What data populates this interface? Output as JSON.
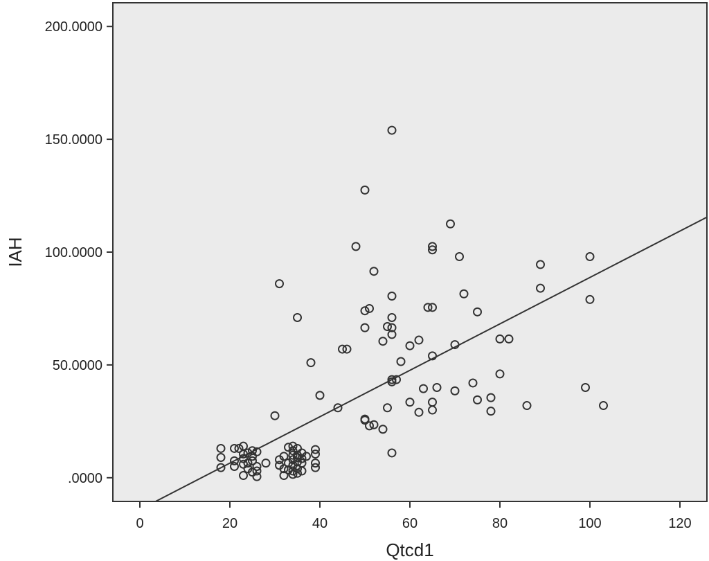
{
  "chart_data": {
    "type": "scatter",
    "title": "",
    "xlabel": "Qtcd1",
    "ylabel": "IAH",
    "xlim": [
      -6,
      126
    ],
    "ylim": [
      -10.5,
      210.5
    ],
    "x_ticks": [
      0,
      20,
      40,
      60,
      80,
      100,
      120
    ],
    "x_tick_labels": [
      "0",
      "20",
      "40",
      "60",
      "80",
      "100",
      "120"
    ],
    "y_ticks": [
      0,
      50,
      100,
      150,
      200
    ],
    "y_tick_labels": [
      ".0000",
      "50.0000",
      "100.0000",
      "150.0000",
      "200.0000"
    ],
    "grid": false,
    "background_color": "#ebebeb",
    "marker_color": "#333333",
    "fit_line": {
      "type": "linear",
      "x": [
        3.5,
        126
      ],
      "y": [
        -11,
        115.5
      ],
      "color": "#333333"
    },
    "points": [
      [
        18,
        13
      ],
      [
        18,
        9
      ],
      [
        18,
        4.5
      ],
      [
        21,
        13
      ],
      [
        21,
        7.5
      ],
      [
        21,
        5
      ],
      [
        22,
        13
      ],
      [
        23,
        14
      ],
      [
        23,
        10.5
      ],
      [
        23,
        8.5
      ],
      [
        23,
        6
      ],
      [
        23,
        1
      ],
      [
        24,
        11
      ],
      [
        24,
        6.5
      ],
      [
        24,
        4
      ],
      [
        25,
        12
      ],
      [
        25,
        9.5
      ],
      [
        25,
        7.5
      ],
      [
        25,
        2.5
      ],
      [
        26,
        11.5
      ],
      [
        26,
        5
      ],
      [
        26,
        3
      ],
      [
        26,
        0.5
      ],
      [
        28,
        6.5
      ],
      [
        30,
        27.5
      ],
      [
        31,
        86
      ],
      [
        31,
        8
      ],
      [
        31,
        5.5
      ],
      [
        32,
        9.5
      ],
      [
        32,
        4
      ],
      [
        32,
        1
      ],
      [
        33,
        13.5
      ],
      [
        33,
        6.5
      ],
      [
        33,
        3.5
      ],
      [
        34,
        14
      ],
      [
        34,
        12
      ],
      [
        34,
        10
      ],
      [
        34,
        8
      ],
      [
        34,
        5.5
      ],
      [
        34,
        3
      ],
      [
        34,
        1.5
      ],
      [
        35,
        71
      ],
      [
        35,
        13
      ],
      [
        35,
        10
      ],
      [
        35,
        9
      ],
      [
        35,
        7
      ],
      [
        35,
        4
      ],
      [
        35,
        2
      ],
      [
        36,
        11
      ],
      [
        36,
        8.5
      ],
      [
        36,
        6.5
      ],
      [
        36,
        3
      ],
      [
        37,
        9.5
      ],
      [
        38,
        51
      ],
      [
        39,
        12.5
      ],
      [
        39,
        10.5
      ],
      [
        39,
        6.5
      ],
      [
        39,
        4.5
      ],
      [
        40,
        36.5
      ],
      [
        44,
        31
      ],
      [
        45,
        57
      ],
      [
        46,
        57
      ],
      [
        48,
        102.5
      ],
      [
        50,
        127.5
      ],
      [
        50,
        74
      ],
      [
        50,
        66.5
      ],
      [
        50,
        26
      ],
      [
        50,
        25.5
      ],
      [
        51,
        75
      ],
      [
        51,
        23
      ],
      [
        52,
        91.5
      ],
      [
        52,
        23.5
      ],
      [
        54,
        60.5
      ],
      [
        54,
        21.5
      ],
      [
        55,
        67
      ],
      [
        55,
        31
      ],
      [
        56,
        154
      ],
      [
        56,
        80.5
      ],
      [
        56,
        71
      ],
      [
        56,
        66.5
      ],
      [
        56,
        63.5
      ],
      [
        56,
        43.5
      ],
      [
        56,
        42.5
      ],
      [
        56,
        11
      ],
      [
        57,
        43.5
      ],
      [
        58,
        51.5
      ],
      [
        60,
        58.5
      ],
      [
        60,
        33.5
      ],
      [
        62,
        61
      ],
      [
        62,
        29
      ],
      [
        63,
        39.5
      ],
      [
        64,
        75.5
      ],
      [
        65,
        102.5
      ],
      [
        65,
        101
      ],
      [
        65,
        75.5
      ],
      [
        65,
        54
      ],
      [
        65,
        33.5
      ],
      [
        65,
        30
      ],
      [
        66,
        40
      ],
      [
        69,
        112.5
      ],
      [
        70,
        59
      ],
      [
        70,
        38.5
      ],
      [
        71,
        98
      ],
      [
        72,
        81.5
      ],
      [
        74,
        42
      ],
      [
        75,
        73.5
      ],
      [
        75,
        34.5
      ],
      [
        78,
        35.5
      ],
      [
        78,
        29.5
      ],
      [
        80,
        61.5
      ],
      [
        80,
        46
      ],
      [
        82,
        61.5
      ],
      [
        86,
        32
      ],
      [
        89,
        94.5
      ],
      [
        89,
        84
      ],
      [
        99,
        40
      ],
      [
        100,
        98
      ],
      [
        100,
        79
      ],
      [
        103,
        32
      ]
    ]
  }
}
